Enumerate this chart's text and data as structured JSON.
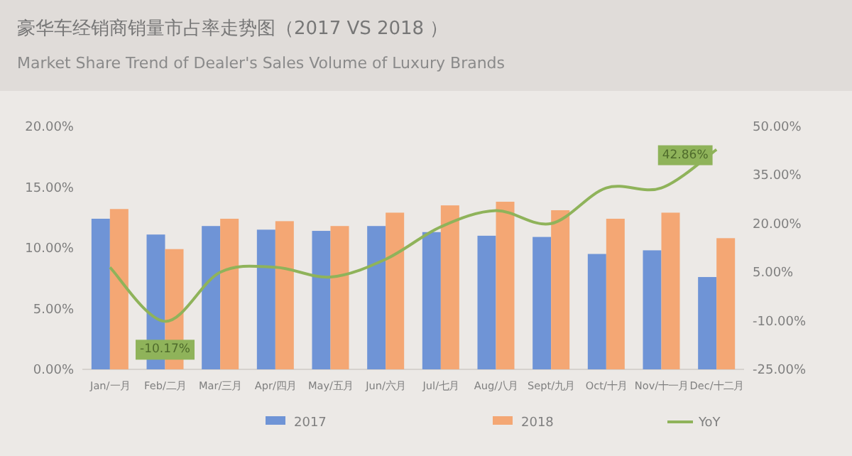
{
  "chart_data": {
    "type": "bar",
    "title": "豪华车经销商销量市占率走势图（2017 VS 2018 ）",
    "subtitle": "Market Share Trend of Dealer's Sales Volume of Luxury Brands",
    "categories": [
      "Jan/一月",
      "Feb/二月",
      "Mar/三月",
      "Apr/四月",
      "May/五月",
      "Jun/六月",
      "Jul/七月",
      "Aug/八月",
      "Sept/九月",
      "Oct/十月",
      "Nov/十一月",
      "Dec/十二月"
    ],
    "series": [
      {
        "name": "2017",
        "color": "#6f94d6",
        "values": [
          12.4,
          11.1,
          11.8,
          11.5,
          11.4,
          11.8,
          11.3,
          11.0,
          10.9,
          9.5,
          9.8,
          7.6
        ]
      },
      {
        "name": "2018",
        "color": "#f4a774",
        "values": [
          13.2,
          9.9,
          12.4,
          12.2,
          11.8,
          12.9,
          13.5,
          13.8,
          13.1,
          12.4,
          12.9,
          10.8
        ]
      },
      {
        "name": "YoY",
        "type": "line",
        "axis": "y2",
        "color": "#8fb35a",
        "line_style": "solid",
        "values": [
          6.5,
          -10.17,
          5.0,
          6.5,
          3.5,
          9,
          19,
          24,
          20,
          31,
          31,
          42.86
        ],
        "value_labels": [
          null,
          "-10.17%",
          null,
          null,
          null,
          null,
          null,
          null,
          null,
          null,
          null,
          "42.86%"
        ]
      }
    ],
    "ylim": [
      0,
      20
    ],
    "yticks": [
      {
        "value": 0,
        "label": "0.00%"
      },
      {
        "value": 5,
        "label": "5.00%"
      },
      {
        "value": 10,
        "label": "10.00%"
      },
      {
        "value": 15,
        "label": "15.00%"
      },
      {
        "value": 20,
        "label": "20.00%"
      }
    ],
    "y2lim": [
      -25,
      50
    ],
    "y2ticks": [
      {
        "value": -25,
        "label": "-25.00%"
      },
      {
        "value": -10,
        "label": "-10.00%"
      },
      {
        "value": 5,
        "label": "5.00%"
      },
      {
        "value": 20,
        "label": "20.00%"
      },
      {
        "value": 35,
        "label": "35.00%"
      },
      {
        "value": 50,
        "label": "50.00%"
      }
    ],
    "marker": "none",
    "legend": "bottom"
  }
}
